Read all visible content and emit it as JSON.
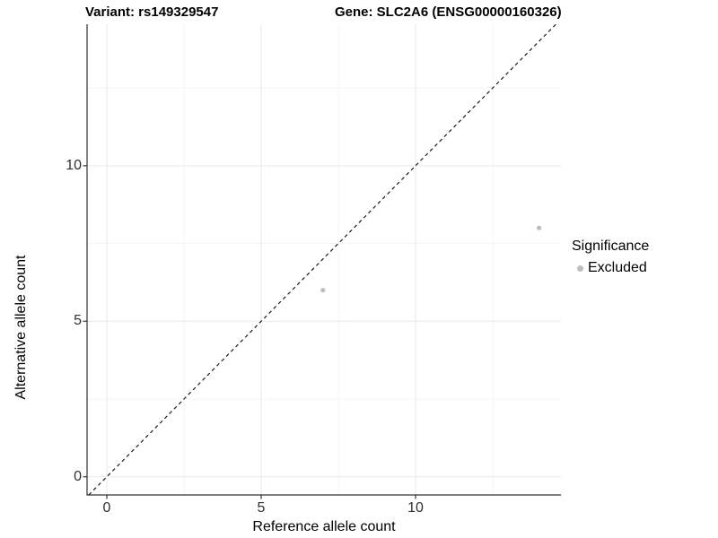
{
  "titles": {
    "variant": "Variant: rs149329547",
    "gene": "Gene: SLC2A6 (ENSG00000160326)"
  },
  "chart_data": {
    "type": "scatter",
    "title_left": "Variant: rs149329547",
    "title_right": "Gene: SLC2A6 (ENSG00000160326)",
    "xlabel": "Reference allele count",
    "ylabel": "Alternative allele count",
    "x_ticks": [
      0,
      5,
      10
    ],
    "y_ticks": [
      0,
      5,
      10
    ],
    "x_minor_gridlines": [
      2.5,
      7.5,
      12.5
    ],
    "y_minor_gridlines": [
      2.5,
      7.5,
      12.5
    ],
    "xlim": [
      -0.64,
      14.71
    ],
    "ylim": [
      -0.585,
      14.55
    ],
    "grid": true,
    "identity_line": {
      "slope": 1,
      "intercept": 0,
      "style": "dashed",
      "color": "#1a1a1a"
    },
    "series": [
      {
        "name": "Excluded",
        "color": "#bdbdbd",
        "points": [
          {
            "x": 7,
            "y": 6
          },
          {
            "x": 14,
            "y": 8
          }
        ]
      }
    ],
    "legend": {
      "title": "Significance",
      "position": "right",
      "entries": [
        {
          "label": "Excluded",
          "color": "#bdbdbd"
        }
      ]
    }
  },
  "colors": {
    "background": "#ffffff",
    "major_grid": "#e9e9e9",
    "minor_grid": "#f5f5f5",
    "axis_line": "#333333",
    "tick_mark": "#333333",
    "tick_text": "#303030",
    "point": "#bdbdbd"
  }
}
